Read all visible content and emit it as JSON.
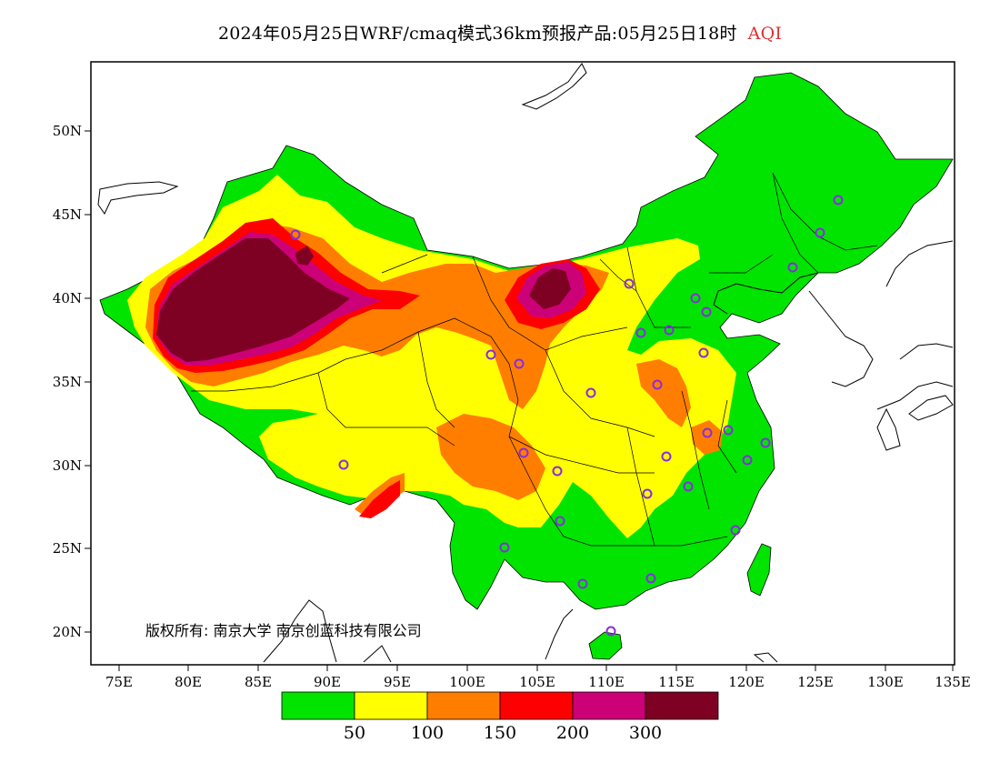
{
  "title": {
    "main": "2024年05月25日WRF/cmaq模式36km预报产品:05月25日18时",
    "variable": "AQI"
  },
  "map": {
    "x_ticks": [
      "75E",
      "80E",
      "85E",
      "90E",
      "95E",
      "100E",
      "105E",
      "110E",
      "115E",
      "120E",
      "125E",
      "130E",
      "135E"
    ],
    "y_ticks": [
      "50N",
      "45N",
      "40N",
      "35N",
      "30N",
      "25N",
      "20N"
    ],
    "copyright": "版权所有: 南京大学  南京创蓝科技有限公司"
  },
  "legend": {
    "colors": [
      "#00e400",
      "#ffff00",
      "#ff7e00",
      "#ff0000",
      "#cc0077",
      "#7e0023"
    ],
    "labels": [
      "50",
      "100",
      "150",
      "200",
      "300"
    ]
  }
}
